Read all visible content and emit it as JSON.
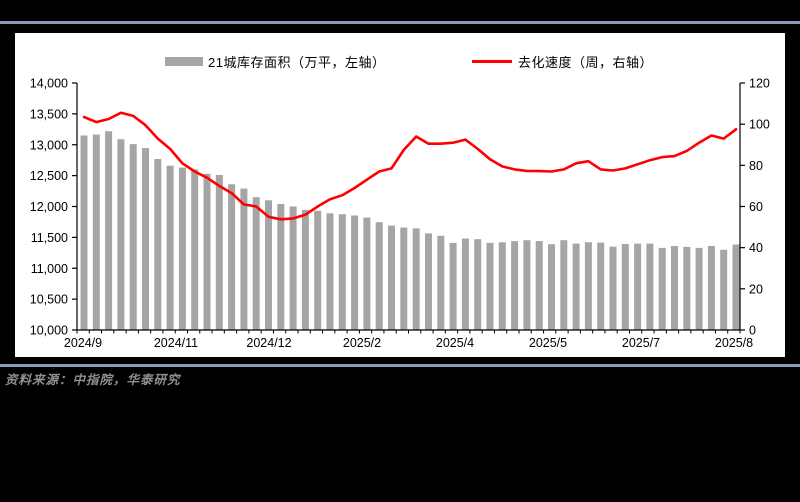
{
  "rules": {
    "color": "#8A9BB8"
  },
  "panel": {
    "background": "#FFFFFF"
  },
  "footer": {
    "source_note": "资料来源：中指院，华泰研究"
  },
  "chart_data": {
    "type": "bar+line",
    "title": "",
    "grid": false,
    "legend_position": "top",
    "n_points": 54,
    "x_tick_labels": [
      "2024/9",
      "2024/11",
      "2024/12",
      "2025/2",
      "2025/4",
      "2025/5",
      "2025/7",
      "2025/8"
    ],
    "left_axis": {
      "unit": "万平",
      "min": 10000,
      "max": 14000,
      "step": 500
    },
    "right_axis": {
      "unit": "周",
      "min": 0,
      "max": 120,
      "step": 20
    },
    "series": [
      {
        "name": "21城库存面积（万平，左轴）",
        "type": "bar",
        "axis": "left",
        "color": "#A5A5A5",
        "values": [
          13150,
          13165,
          13220,
          13090,
          13010,
          12945,
          12770,
          12660,
          12630,
          12600,
          12530,
          12510,
          12360,
          12290,
          12150,
          12100,
          12040,
          12000,
          11945,
          11930,
          11890,
          11875,
          11855,
          11820,
          11745,
          11690,
          11660,
          11645,
          11565,
          11525,
          11410,
          11480,
          11470,
          11410,
          11420,
          11440,
          11455,
          11440,
          11390,
          11455,
          11400,
          11420,
          11415,
          11350,
          11395,
          11400,
          11400,
          11330,
          11360,
          11345,
          11330,
          11360,
          11300,
          11385
        ]
      },
      {
        "name": "去化速度（周，右轴）",
        "type": "line",
        "axis": "right",
        "color": "#FF0000",
        "values": [
          103.5,
          101.0,
          102.5,
          105.5,
          104.0,
          99.5,
          93.0,
          88.0,
          81.0,
          77.0,
          74.0,
          70.0,
          66.5,
          61.0,
          60.0,
          55.0,
          53.8,
          54.2,
          56.0,
          60.0,
          63.5,
          65.5,
          69.0,
          73.0,
          77.0,
          78.5,
          87.5,
          94.0,
          90.5,
          90.5,
          91.0,
          92.5,
          88.0,
          83.0,
          79.5,
          78.0,
          77.3,
          77.2,
          77.0,
          78.0,
          81.0,
          82.0,
          78.0,
          77.5,
          78.5,
          80.5,
          82.5,
          84.0,
          84.5,
          87.0,
          91.0,
          94.5,
          93.0,
          97.5
        ]
      }
    ]
  }
}
